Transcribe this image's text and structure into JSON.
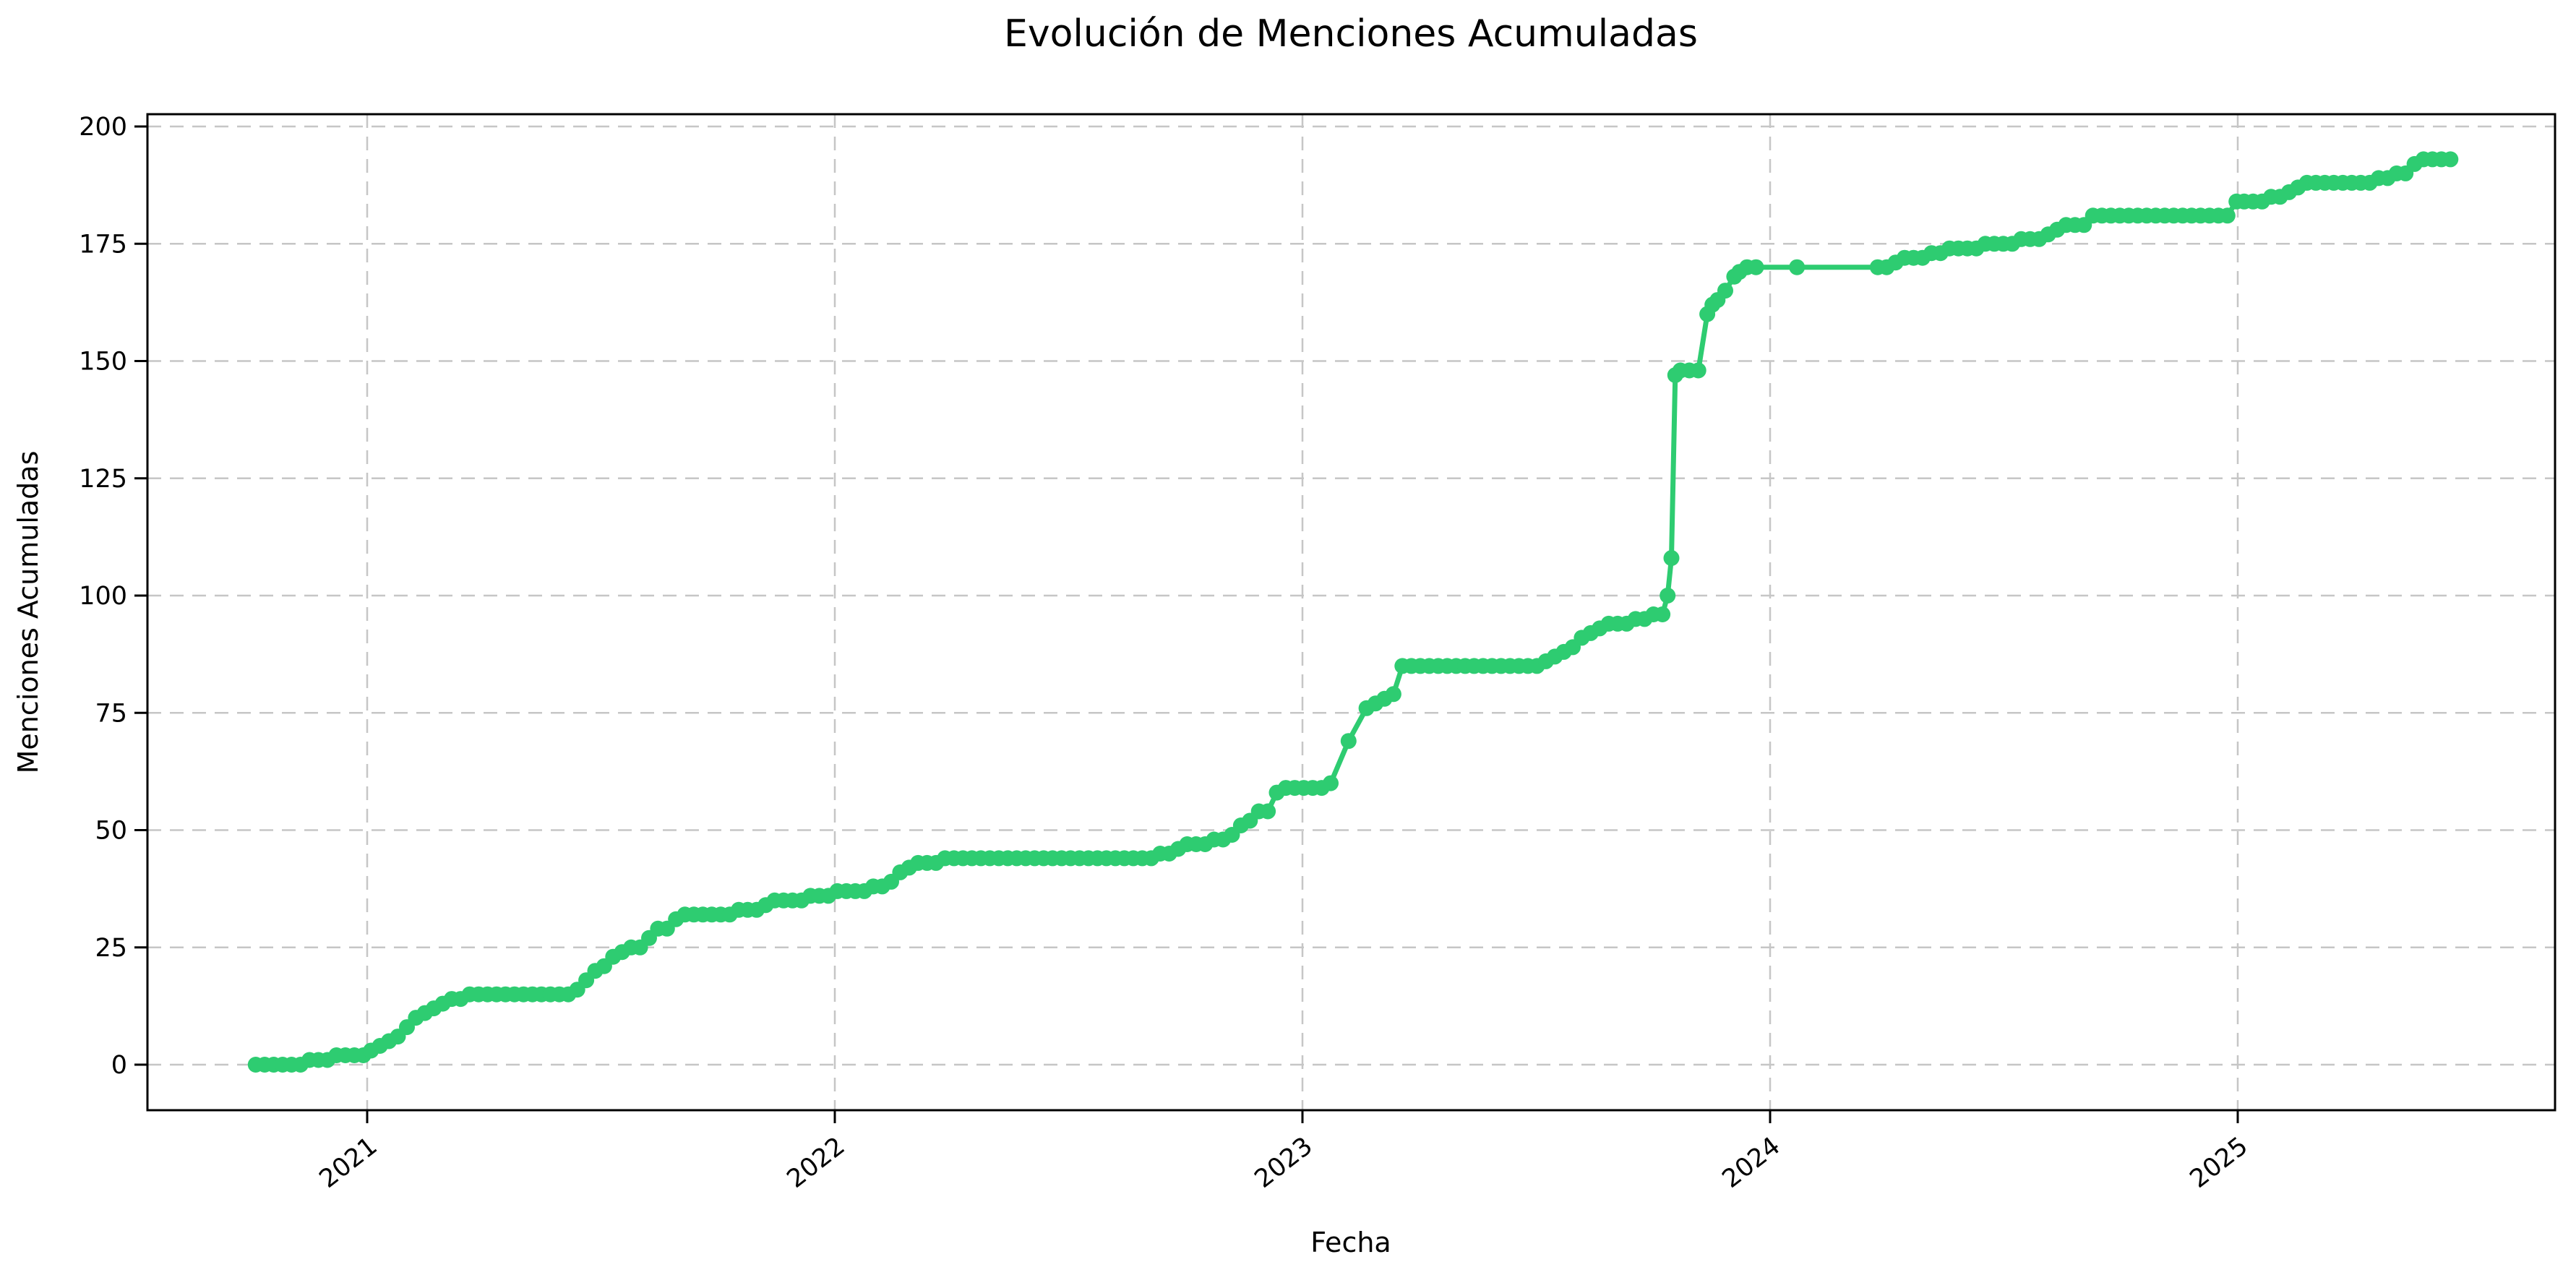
{
  "chart_data": {
    "type": "line",
    "title": "Evolución de Menciones Acumuladas",
    "xlabel": "Fecha",
    "ylabel": "Menciones Acumuladas",
    "grid": true,
    "legend": "none",
    "line_color": "#2ecc71",
    "grid_color": "#c6c6c6",
    "spine_color": "#000000",
    "background_color": "#ffffff",
    "ylim": [
      -10,
      203
    ],
    "yticks": [
      0,
      25,
      50,
      75,
      100,
      125,
      150,
      175,
      200
    ],
    "xticks": [
      2021,
      2022,
      2023,
      2024,
      2025
    ],
    "x_range_years": [
      2020.53,
      2025.68
    ],
    "series": [
      {
        "name": "menciones_acumuladas",
        "points": [
          [
            "2020-10-05",
            0
          ],
          [
            "2020-10-12",
            0
          ],
          [
            "2020-10-19",
            0
          ],
          [
            "2020-10-26",
            0
          ],
          [
            "2020-11-02",
            0
          ],
          [
            "2020-11-09",
            0
          ],
          [
            "2020-11-16",
            1
          ],
          [
            "2020-11-23",
            1
          ],
          [
            "2020-11-30",
            1
          ],
          [
            "2020-12-07",
            2
          ],
          [
            "2020-12-14",
            2
          ],
          [
            "2020-12-21",
            2
          ],
          [
            "2020-12-28",
            2
          ],
          [
            "2021-01-04",
            3
          ],
          [
            "2021-01-11",
            4
          ],
          [
            "2021-01-18",
            5
          ],
          [
            "2021-01-25",
            6
          ],
          [
            "2021-02-01",
            8
          ],
          [
            "2021-02-08",
            10
          ],
          [
            "2021-02-15",
            11
          ],
          [
            "2021-02-22",
            12
          ],
          [
            "2021-03-01",
            13
          ],
          [
            "2021-03-08",
            14
          ],
          [
            "2021-03-15",
            14
          ],
          [
            "2021-03-22",
            15
          ],
          [
            "2021-03-29",
            15
          ],
          [
            "2021-04-05",
            15
          ],
          [
            "2021-04-12",
            15
          ],
          [
            "2021-04-19",
            15
          ],
          [
            "2021-04-26",
            15
          ],
          [
            "2021-05-03",
            15
          ],
          [
            "2021-05-10",
            15
          ],
          [
            "2021-05-17",
            15
          ],
          [
            "2021-05-24",
            15
          ],
          [
            "2021-05-31",
            15
          ],
          [
            "2021-06-07",
            15
          ],
          [
            "2021-06-14",
            16
          ],
          [
            "2021-06-21",
            18
          ],
          [
            "2021-06-28",
            20
          ],
          [
            "2021-07-05",
            21
          ],
          [
            "2021-07-12",
            23
          ],
          [
            "2021-07-19",
            24
          ],
          [
            "2021-07-26",
            25
          ],
          [
            "2021-08-02",
            25
          ],
          [
            "2021-08-09",
            27
          ],
          [
            "2021-08-16",
            29
          ],
          [
            "2021-08-23",
            29
          ],
          [
            "2021-08-30",
            31
          ],
          [
            "2021-09-06",
            32
          ],
          [
            "2021-09-13",
            32
          ],
          [
            "2021-09-20",
            32
          ],
          [
            "2021-09-27",
            32
          ],
          [
            "2021-10-04",
            32
          ],
          [
            "2021-10-11",
            32
          ],
          [
            "2021-10-18",
            33
          ],
          [
            "2021-10-25",
            33
          ],
          [
            "2021-11-01",
            33
          ],
          [
            "2021-11-08",
            34
          ],
          [
            "2021-11-15",
            35
          ],
          [
            "2021-11-22",
            35
          ],
          [
            "2021-11-29",
            35
          ],
          [
            "2021-12-06",
            35
          ],
          [
            "2021-12-13",
            36
          ],
          [
            "2021-12-20",
            36
          ],
          [
            "2021-12-27",
            36
          ],
          [
            "2022-01-03",
            37
          ],
          [
            "2022-01-10",
            37
          ],
          [
            "2022-01-17",
            37
          ],
          [
            "2022-01-24",
            37
          ],
          [
            "2022-01-31",
            38
          ],
          [
            "2022-02-07",
            38
          ],
          [
            "2022-02-14",
            39
          ],
          [
            "2022-02-21",
            41
          ],
          [
            "2022-02-28",
            42
          ],
          [
            "2022-03-07",
            43
          ],
          [
            "2022-03-14",
            43
          ],
          [
            "2022-03-21",
            43
          ],
          [
            "2022-03-28",
            44
          ],
          [
            "2022-04-04",
            44
          ],
          [
            "2022-04-11",
            44
          ],
          [
            "2022-04-18",
            44
          ],
          [
            "2022-04-25",
            44
          ],
          [
            "2022-05-02",
            44
          ],
          [
            "2022-05-09",
            44
          ],
          [
            "2022-05-16",
            44
          ],
          [
            "2022-05-23",
            44
          ],
          [
            "2022-05-30",
            44
          ],
          [
            "2022-06-06",
            44
          ],
          [
            "2022-06-13",
            44
          ],
          [
            "2022-06-20",
            44
          ],
          [
            "2022-06-27",
            44
          ],
          [
            "2022-07-04",
            44
          ],
          [
            "2022-07-11",
            44
          ],
          [
            "2022-07-18",
            44
          ],
          [
            "2022-07-25",
            44
          ],
          [
            "2022-08-01",
            44
          ],
          [
            "2022-08-08",
            44
          ],
          [
            "2022-08-15",
            44
          ],
          [
            "2022-08-22",
            44
          ],
          [
            "2022-08-29",
            44
          ],
          [
            "2022-09-05",
            44
          ],
          [
            "2022-09-12",
            45
          ],
          [
            "2022-09-19",
            45
          ],
          [
            "2022-09-26",
            46
          ],
          [
            "2022-10-03",
            47
          ],
          [
            "2022-10-10",
            47
          ],
          [
            "2022-10-17",
            47
          ],
          [
            "2022-10-24",
            48
          ],
          [
            "2022-10-31",
            48
          ],
          [
            "2022-11-07",
            49
          ],
          [
            "2022-11-14",
            51
          ],
          [
            "2022-11-21",
            52
          ],
          [
            "2022-11-28",
            54
          ],
          [
            "2022-12-05",
            54
          ],
          [
            "2022-12-12",
            58
          ],
          [
            "2022-12-19",
            59
          ],
          [
            "2022-12-26",
            59
          ],
          [
            "2023-01-02",
            59
          ],
          [
            "2023-01-09",
            59
          ],
          [
            "2023-01-16",
            59
          ],
          [
            "2023-01-23",
            60
          ],
          [
            "2023-02-06",
            69
          ],
          [
            "2023-02-20",
            76
          ],
          [
            "2023-02-27",
            77
          ],
          [
            "2023-03-06",
            78
          ],
          [
            "2023-03-13",
            79
          ],
          [
            "2023-03-20",
            85
          ],
          [
            "2023-03-27",
            85
          ],
          [
            "2023-04-03",
            85
          ],
          [
            "2023-04-10",
            85
          ],
          [
            "2023-04-17",
            85
          ],
          [
            "2023-04-24",
            85
          ],
          [
            "2023-05-01",
            85
          ],
          [
            "2023-05-08",
            85
          ],
          [
            "2023-05-15",
            85
          ],
          [
            "2023-05-22",
            85
          ],
          [
            "2023-05-29",
            85
          ],
          [
            "2023-06-05",
            85
          ],
          [
            "2023-06-12",
            85
          ],
          [
            "2023-06-19",
            85
          ],
          [
            "2023-06-26",
            85
          ],
          [
            "2023-07-03",
            85
          ],
          [
            "2023-07-10",
            86
          ],
          [
            "2023-07-17",
            87
          ],
          [
            "2023-07-24",
            88
          ],
          [
            "2023-07-31",
            89
          ],
          [
            "2023-08-07",
            91
          ],
          [
            "2023-08-14",
            92
          ],
          [
            "2023-08-21",
            93
          ],
          [
            "2023-08-28",
            94
          ],
          [
            "2023-09-04",
            94
          ],
          [
            "2023-09-11",
            94
          ],
          [
            "2023-09-18",
            95
          ],
          [
            "2023-09-25",
            95
          ],
          [
            "2023-10-02",
            96
          ],
          [
            "2023-10-09",
            96
          ],
          [
            "2023-10-13",
            100
          ],
          [
            "2023-10-16",
            108
          ],
          [
            "2023-10-19",
            147
          ],
          [
            "2023-10-23",
            148
          ],
          [
            "2023-10-30",
            148
          ],
          [
            "2023-11-06",
            148
          ],
          [
            "2023-11-13",
            160
          ],
          [
            "2023-11-17",
            162
          ],
          [
            "2023-11-21",
            163
          ],
          [
            "2023-11-27",
            165
          ],
          [
            "2023-12-04",
            168
          ],
          [
            "2023-12-08",
            169
          ],
          [
            "2023-12-14",
            170
          ],
          [
            "2023-12-21",
            170
          ],
          [
            "2024-01-22",
            170
          ],
          [
            "2024-03-25",
            170
          ],
          [
            "2024-04-01",
            170
          ],
          [
            "2024-04-08",
            171
          ],
          [
            "2024-04-15",
            172
          ],
          [
            "2024-04-22",
            172
          ],
          [
            "2024-04-29",
            172
          ],
          [
            "2024-05-06",
            173
          ],
          [
            "2024-05-13",
            173
          ],
          [
            "2024-05-20",
            174
          ],
          [
            "2024-05-27",
            174
          ],
          [
            "2024-06-03",
            174
          ],
          [
            "2024-06-10",
            174
          ],
          [
            "2024-06-17",
            175
          ],
          [
            "2024-06-24",
            175
          ],
          [
            "2024-07-01",
            175
          ],
          [
            "2024-07-08",
            175
          ],
          [
            "2024-07-15",
            176
          ],
          [
            "2024-07-22",
            176
          ],
          [
            "2024-07-29",
            176
          ],
          [
            "2024-08-05",
            177
          ],
          [
            "2024-08-12",
            178
          ],
          [
            "2024-08-19",
            179
          ],
          [
            "2024-08-26",
            179
          ],
          [
            "2024-09-02",
            179
          ],
          [
            "2024-09-09",
            181
          ],
          [
            "2024-09-16",
            181
          ],
          [
            "2024-09-23",
            181
          ],
          [
            "2024-09-30",
            181
          ],
          [
            "2024-10-07",
            181
          ],
          [
            "2024-10-14",
            181
          ],
          [
            "2024-10-21",
            181
          ],
          [
            "2024-10-28",
            181
          ],
          [
            "2024-11-04",
            181
          ],
          [
            "2024-11-11",
            181
          ],
          [
            "2024-11-18",
            181
          ],
          [
            "2024-11-25",
            181
          ],
          [
            "2024-12-02",
            181
          ],
          [
            "2024-12-09",
            181
          ],
          [
            "2024-12-16",
            181
          ],
          [
            "2024-12-23",
            181
          ],
          [
            "2024-12-30",
            184
          ],
          [
            "2025-01-06",
            184
          ],
          [
            "2025-01-13",
            184
          ],
          [
            "2025-01-20",
            184
          ],
          [
            "2025-01-27",
            185
          ],
          [
            "2025-02-03",
            185
          ],
          [
            "2025-02-10",
            186
          ],
          [
            "2025-02-17",
            187
          ],
          [
            "2025-02-24",
            188
          ],
          [
            "2025-03-03",
            188
          ],
          [
            "2025-03-10",
            188
          ],
          [
            "2025-03-17",
            188
          ],
          [
            "2025-03-24",
            188
          ],
          [
            "2025-03-31",
            188
          ],
          [
            "2025-04-07",
            188
          ],
          [
            "2025-04-14",
            188
          ],
          [
            "2025-04-21",
            189
          ],
          [
            "2025-04-28",
            189
          ],
          [
            "2025-05-05",
            190
          ],
          [
            "2025-05-12",
            190
          ],
          [
            "2025-05-19",
            192
          ],
          [
            "2025-05-26",
            193
          ],
          [
            "2025-06-02",
            193
          ],
          [
            "2025-06-09",
            193
          ],
          [
            "2025-06-16",
            193
          ]
        ]
      }
    ]
  }
}
